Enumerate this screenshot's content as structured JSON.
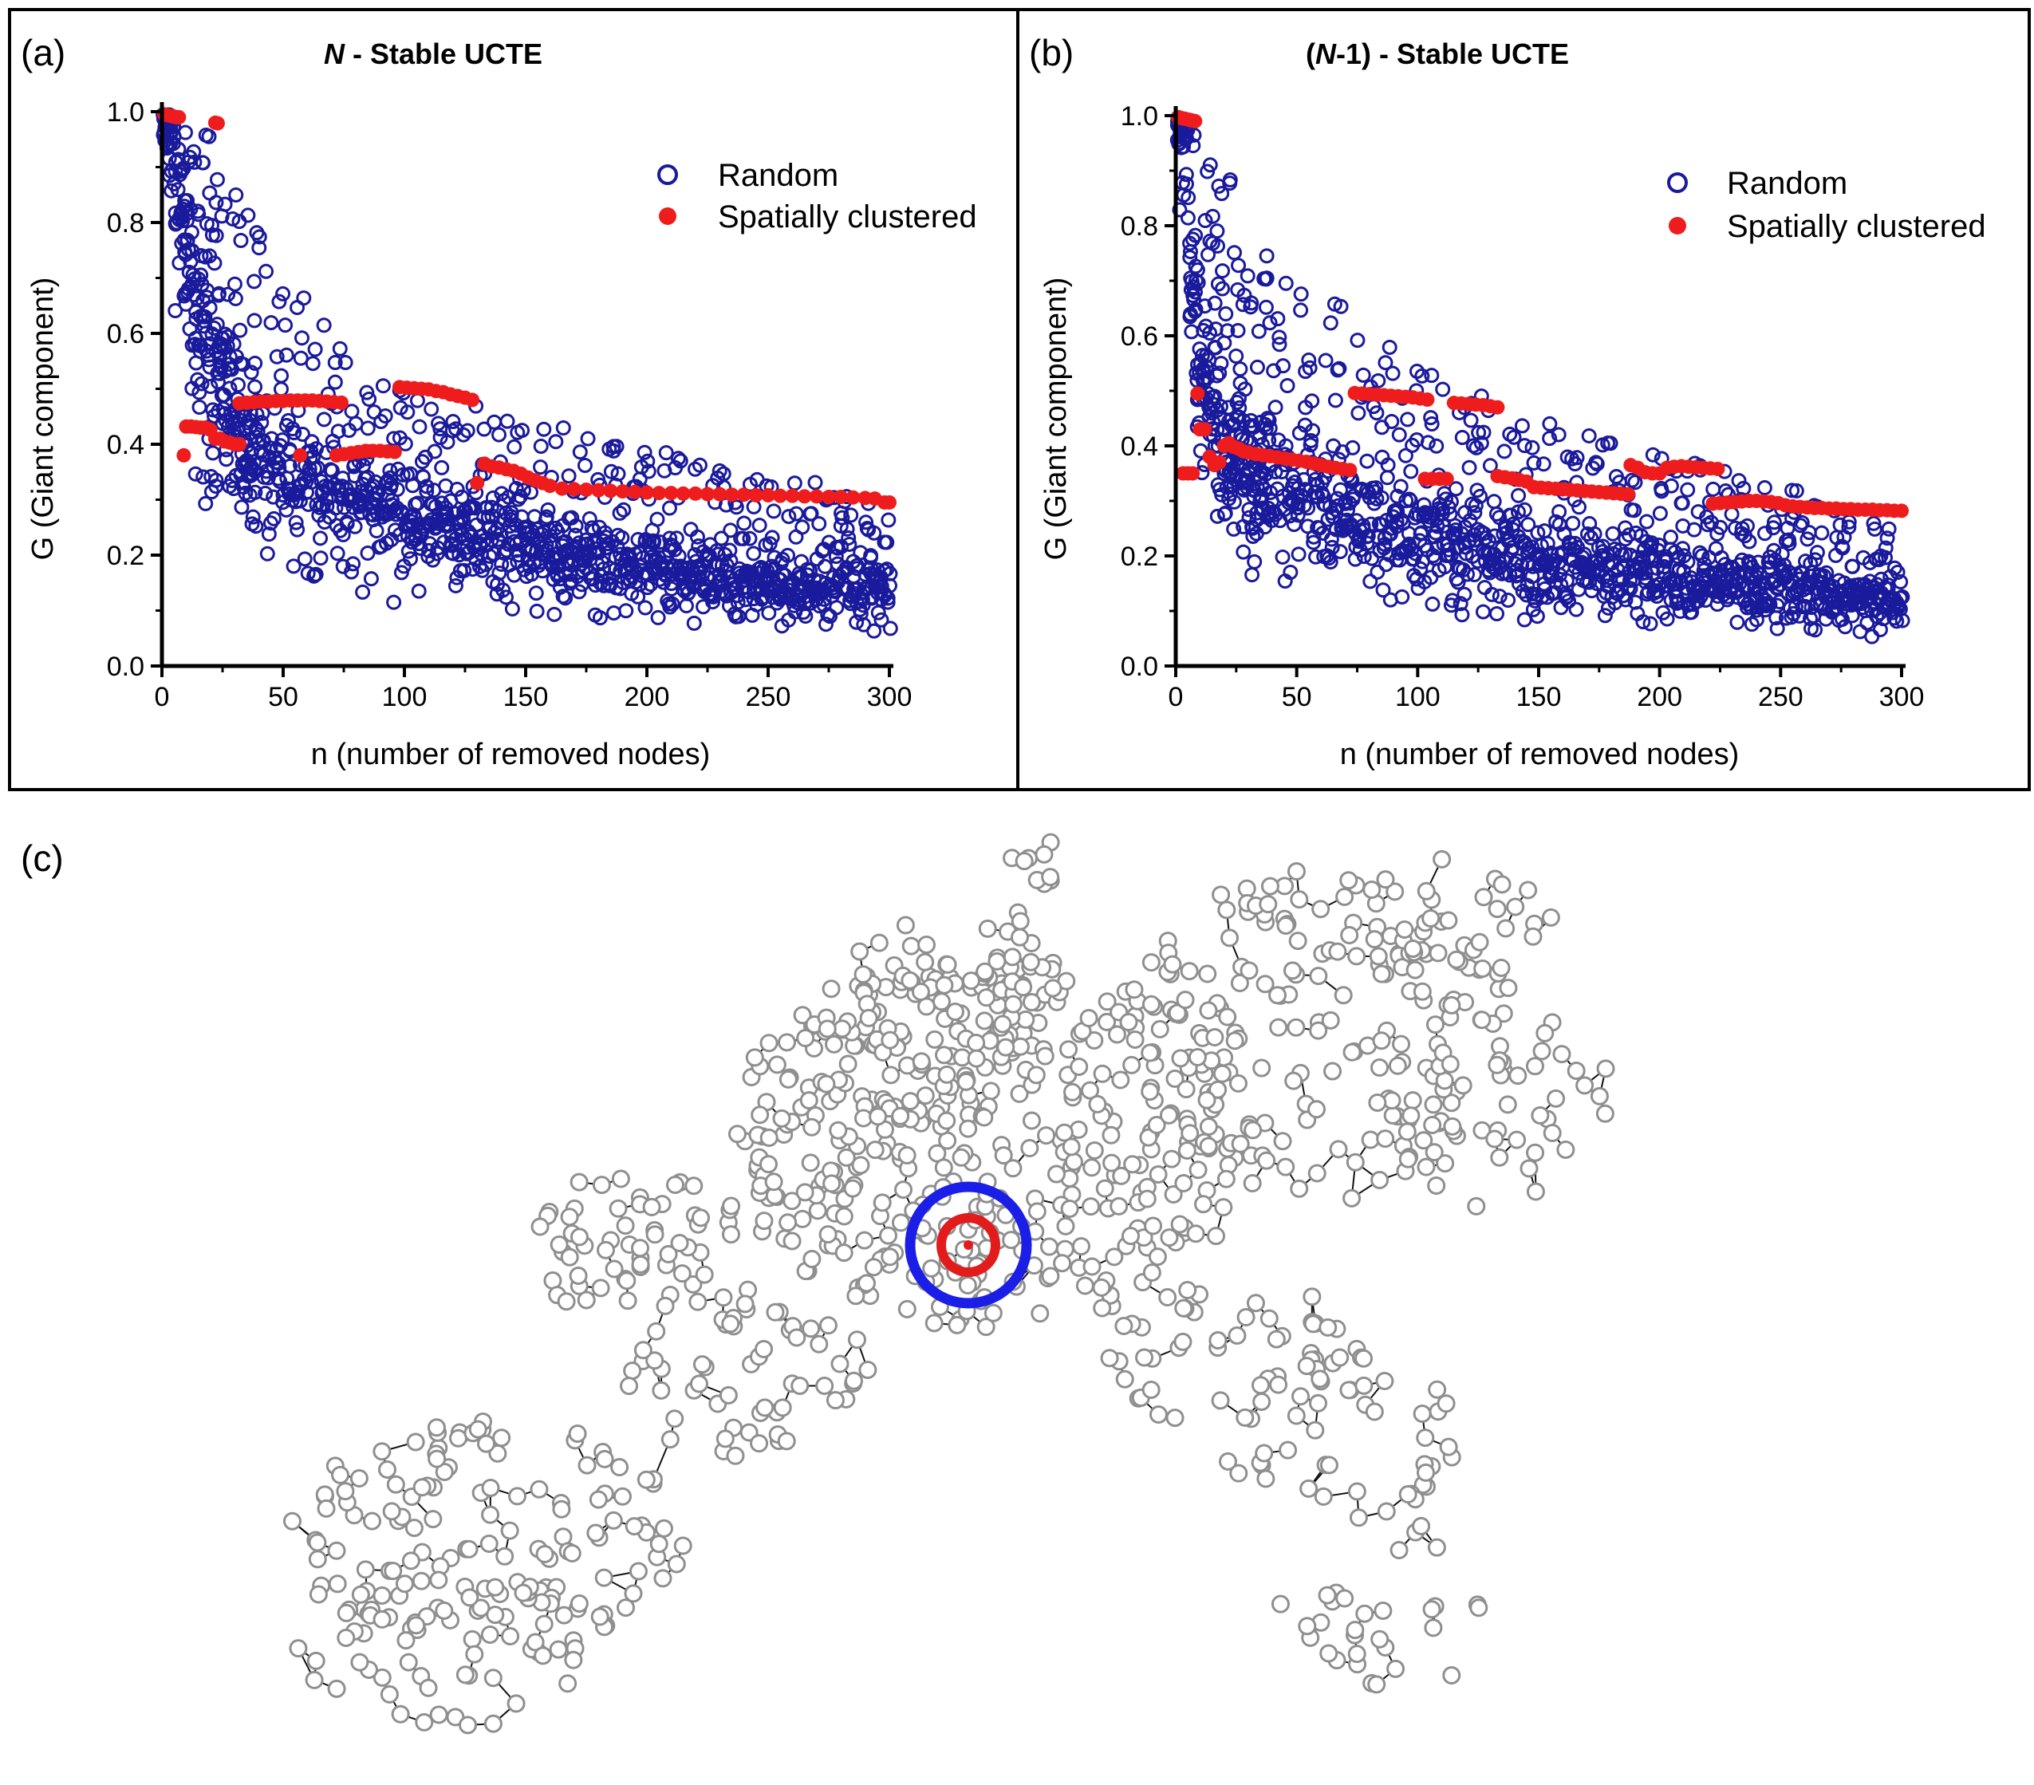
{
  "panel_c": {
    "letter": "(c)",
    "map_description": "UCTE power grid network with clustered failure region",
    "colors": {
      "node": "#8f8f8f",
      "edge": "#111111",
      "outer_ring": "#1a1ee6",
      "inner_ring": "#e21b1b"
    }
  },
  "chart_data": [
    {
      "type": "scatter",
      "letter": "(a)",
      "title_italic": "N",
      "title_rest": " - Stable UCTE",
      "xlabel": "n (number of removed nodes)",
      "ylabel": "G (Giant component)",
      "xlim": [
        0,
        300
      ],
      "ylim": [
        0,
        1.0
      ],
      "xticks": [
        "0",
        "50",
        "100",
        "150",
        "200",
        "250",
        "300"
      ],
      "yticks": [
        "0.0",
        "0.2",
        "0.4",
        "0.6",
        "0.8",
        "1.0"
      ],
      "legend_position": "top-right",
      "series": [
        {
          "name": "Random",
          "marker": "open-circle",
          "color": "#1a1a9c",
          "description": "Random removal: G drops from 1.0 to about 0.3 by n=50 and scatters 0.07-0.5 thereafter",
          "envelope": {
            "n": [
              0,
              10,
              20,
              30,
              40,
              60,
              80,
              100,
              150,
              200,
              250,
              300
            ],
            "g_max": [
              1.0,
              0.98,
              0.96,
              0.9,
              0.8,
              0.65,
              0.55,
              0.5,
              0.45,
              0.4,
              0.35,
              0.3
            ],
            "g_center": [
              1.0,
              0.75,
              0.55,
              0.45,
              0.38,
              0.33,
              0.3,
              0.27,
              0.22,
              0.18,
              0.15,
              0.14
            ],
            "g_min": [
              0.95,
              0.4,
              0.25,
              0.2,
              0.2,
              0.16,
              0.13,
              0.11,
              0.09,
              0.07,
              0.07,
              0.06
            ]
          }
        },
        {
          "name": "Spatially clustered",
          "marker": "filled-circle",
          "color": "#ee1c1c",
          "points": [
            [
              1,
              0.995
            ],
            [
              2,
              0.994
            ],
            [
              3,
              0.993
            ],
            [
              4,
              0.992
            ],
            [
              5,
              0.991
            ],
            [
              6,
              0.99
            ],
            [
              7,
              0.99
            ],
            [
              22,
              0.98
            ],
            [
              23,
              0.979
            ],
            [
              9,
              0.38
            ],
            [
              10,
              0.432
            ],
            [
              12,
              0.432
            ],
            [
              14,
              0.431
            ],
            [
              16,
              0.43
            ],
            [
              18,
              0.43
            ],
            [
              20,
              0.426
            ],
            [
              22,
              0.41
            ],
            [
              24,
              0.41
            ],
            [
              26,
              0.405
            ],
            [
              28,
              0.403
            ],
            [
              30,
              0.4
            ],
            [
              32,
              0.4
            ],
            [
              32,
              0.474
            ],
            [
              35,
              0.475
            ],
            [
              38,
              0.476
            ],
            [
              41,
              0.477
            ],
            [
              44,
              0.477
            ],
            [
              47,
              0.478
            ],
            [
              50,
              0.478
            ],
            [
              53,
              0.479
            ],
            [
              56,
              0.479
            ],
            [
              59,
              0.479
            ],
            [
              62,
              0.479
            ],
            [
              65,
              0.478
            ],
            [
              68,
              0.477
            ],
            [
              71,
              0.476
            ],
            [
              74,
              0.475
            ],
            [
              57,
              0.38
            ],
            [
              72,
              0.38
            ],
            [
              75,
              0.382
            ],
            [
              78,
              0.384
            ],
            [
              81,
              0.386
            ],
            [
              84,
              0.388
            ],
            [
              87,
              0.388
            ],
            [
              90,
              0.388
            ],
            [
              93,
              0.387
            ],
            [
              96,
              0.386
            ],
            [
              98,
              0.503
            ],
            [
              101,
              0.502
            ],
            [
              104,
              0.501
            ],
            [
              107,
              0.5
            ],
            [
              110,
              0.499
            ],
            [
              113,
              0.496
            ],
            [
              116,
              0.494
            ],
            [
              119,
              0.49
            ],
            [
              122,
              0.487
            ],
            [
              125,
              0.484
            ],
            [
              128,
              0.48
            ],
            [
              130,
              0.33
            ],
            [
              133,
              0.365
            ],
            [
              136,
              0.36
            ],
            [
              139,
              0.358
            ],
            [
              142,
              0.355
            ],
            [
              145,
              0.352
            ],
            [
              148,
              0.347
            ],
            [
              151,
              0.34
            ],
            [
              154,
              0.335
            ],
            [
              157,
              0.33
            ],
            [
              160,
              0.325
            ],
            [
              165,
              0.32
            ],
            [
              170,
              0.319
            ],
            [
              175,
              0.318
            ],
            [
              180,
              0.317
            ],
            [
              185,
              0.316
            ],
            [
              190,
              0.315
            ],
            [
              195,
              0.314
            ],
            [
              200,
              0.313
            ],
            [
              205,
              0.312
            ],
            [
              210,
              0.312
            ],
            [
              215,
              0.311
            ],
            [
              220,
              0.311
            ],
            [
              225,
              0.31
            ],
            [
              230,
              0.31
            ],
            [
              235,
              0.309
            ],
            [
              240,
              0.309
            ],
            [
              245,
              0.308
            ],
            [
              250,
              0.308
            ],
            [
              255,
              0.307
            ],
            [
              260,
              0.307
            ],
            [
              265,
              0.306
            ],
            [
              270,
              0.306
            ],
            [
              275,
              0.305
            ],
            [
              280,
              0.305
            ],
            [
              285,
              0.304
            ],
            [
              290,
              0.303
            ],
            [
              294,
              0.302
            ],
            [
              298,
              0.295
            ],
            [
              300,
              0.295
            ]
          ]
        }
      ]
    },
    {
      "type": "scatter",
      "letter": "(b)",
      "title_pre": "(",
      "title_italic": "N",
      "title_rest": "-1) - Stable UCTE",
      "xlabel": "n (number of removed nodes)",
      "ylabel": "G (Giant component)",
      "xlim": [
        0,
        300
      ],
      "ylim": [
        0,
        1.0
      ],
      "xticks": [
        "0",
        "50",
        "100",
        "150",
        "200",
        "250",
        "300"
      ],
      "yticks": [
        "0.0",
        "0.2",
        "0.4",
        "0.6",
        "0.8",
        "1.0"
      ],
      "legend_position": "top-right",
      "series": [
        {
          "name": "Random",
          "marker": "open-circle",
          "color": "#1a1a9c",
          "description": "Random removal: G drops sharply after first few nodes; points scatter 0.06-0.6",
          "envelope": {
            "n": [
              0,
              10,
              20,
              30,
              40,
              60,
              80,
              100,
              150,
              200,
              250,
              300
            ],
            "g_max": [
              1.0,
              0.97,
              0.92,
              0.85,
              0.75,
              0.7,
              0.6,
              0.55,
              0.45,
              0.4,
              0.33,
              0.25
            ],
            "g_center": [
              1.0,
              0.55,
              0.4,
              0.36,
              0.33,
              0.3,
              0.27,
              0.24,
              0.2,
              0.16,
              0.14,
              0.12
            ],
            "g_min": [
              0.95,
              0.3,
              0.2,
              0.15,
              0.15,
              0.13,
              0.12,
              0.1,
              0.08,
              0.07,
              0.06,
              0.05
            ]
          }
        },
        {
          "name": "Spatially clustered",
          "marker": "filled-circle",
          "color": "#ee1c1c",
          "points": [
            [
              1,
              0.997
            ],
            [
              2,
              0.996
            ],
            [
              3,
              0.995
            ],
            [
              4,
              0.994
            ],
            [
              5,
              0.993
            ],
            [
              6,
              0.992
            ],
            [
              7,
              0.991
            ],
            [
              8,
              0.99
            ],
            [
              3,
              0.35
            ],
            [
              5,
              0.35
            ],
            [
              7,
              0.35
            ],
            [
              9,
              0.495
            ],
            [
              10,
              0.43
            ],
            [
              12,
              0.43
            ],
            [
              14,
              0.38
            ],
            [
              16,
              0.365
            ],
            [
              18,
              0.37
            ],
            [
              20,
              0.4
            ],
            [
              22,
              0.405
            ],
            [
              24,
              0.398
            ],
            [
              26,
              0.395
            ],
            [
              28,
              0.39
            ],
            [
              30,
              0.388
            ],
            [
              33,
              0.385
            ],
            [
              36,
              0.383
            ],
            [
              39,
              0.381
            ],
            [
              42,
              0.379
            ],
            [
              45,
              0.377
            ],
            [
              48,
              0.375
            ],
            [
              51,
              0.373
            ],
            [
              54,
              0.371
            ],
            [
              57,
              0.368
            ],
            [
              60,
              0.365
            ],
            [
              63,
              0.362
            ],
            [
              66,
              0.36
            ],
            [
              69,
              0.358
            ],
            [
              72,
              0.356
            ],
            [
              74,
              0.496
            ],
            [
              77,
              0.495
            ],
            [
              80,
              0.494
            ],
            [
              83,
              0.493
            ],
            [
              86,
              0.492
            ],
            [
              89,
              0.491
            ],
            [
              92,
              0.49
            ],
            [
              95,
              0.489
            ],
            [
              98,
              0.488
            ],
            [
              101,
              0.486
            ],
            [
              104,
              0.484
            ],
            [
              103,
              0.34
            ],
            [
              106,
              0.34
            ],
            [
              109,
              0.34
            ],
            [
              112,
              0.34
            ],
            [
              115,
              0.478
            ],
            [
              118,
              0.477
            ],
            [
              121,
              0.476
            ],
            [
              124,
              0.475
            ],
            [
              127,
              0.474
            ],
            [
              130,
              0.472
            ],
            [
              133,
              0.47
            ],
            [
              133,
              0.345
            ],
            [
              136,
              0.343
            ],
            [
              139,
              0.341
            ],
            [
              142,
              0.338
            ],
            [
              145,
              0.335
            ],
            [
              148,
              0.325
            ],
            [
              151,
              0.324
            ],
            [
              154,
              0.323
            ],
            [
              157,
              0.322
            ],
            [
              160,
              0.321
            ],
            [
              163,
              0.32
            ],
            [
              166,
              0.319
            ],
            [
              169,
              0.318
            ],
            [
              172,
              0.317
            ],
            [
              175,
              0.316
            ],
            [
              178,
              0.315
            ],
            [
              181,
              0.314
            ],
            [
              184,
              0.313
            ],
            [
              187,
              0.312
            ],
            [
              188,
              0.365
            ],
            [
              191,
              0.36
            ],
            [
              194,
              0.352
            ],
            [
              197,
              0.35
            ],
            [
              200,
              0.35
            ],
            [
              203,
              0.36
            ],
            [
              206,
              0.362
            ],
            [
              209,
              0.363
            ],
            [
              212,
              0.362
            ],
            [
              215,
              0.361
            ],
            [
              218,
              0.36
            ],
            [
              221,
              0.359
            ],
            [
              224,
              0.358
            ],
            [
              222,
              0.295
            ],
            [
              225,
              0.296
            ],
            [
              228,
              0.297
            ],
            [
              231,
              0.298
            ],
            [
              234,
              0.299
            ],
            [
              237,
              0.3
            ],
            [
              240,
              0.3
            ],
            [
              243,
              0.299
            ],
            [
              246,
              0.298
            ],
            [
              249,
              0.296
            ],
            [
              252,
              0.292
            ],
            [
              255,
              0.29
            ],
            [
              258,
              0.289
            ],
            [
              261,
              0.288
            ],
            [
              264,
              0.287
            ],
            [
              267,
              0.287
            ],
            [
              270,
              0.286
            ],
            [
              273,
              0.286
            ],
            [
              276,
              0.285
            ],
            [
              279,
              0.285
            ],
            [
              282,
              0.284
            ],
            [
              285,
              0.284
            ],
            [
              288,
              0.284
            ],
            [
              291,
              0.283
            ],
            [
              294,
              0.283
            ],
            [
              297,
              0.282
            ],
            [
              300,
              0.282
            ]
          ]
        }
      ]
    }
  ]
}
